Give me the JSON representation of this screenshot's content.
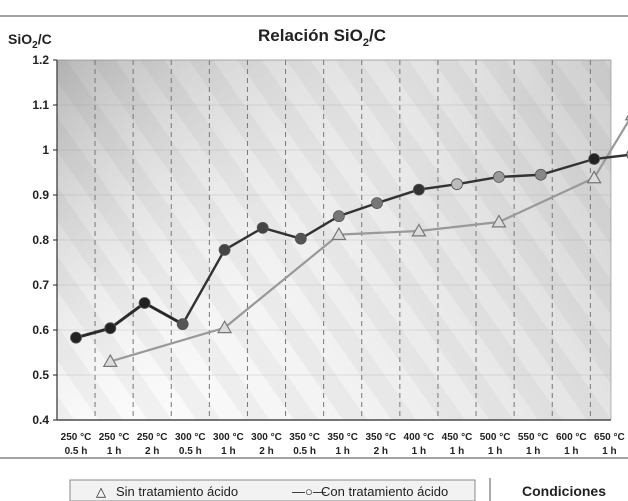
{
  "chart_data": {
    "type": "line",
    "title_main": "Relación SiO",
    "title_sub": "2",
    "title_tail": "/C",
    "ylabel_main": "SiO",
    "ylabel_sub": "2",
    "ylabel_tail": "/C",
    "xlabel": "Condiciones",
    "ylim": [
      0.4,
      1.2
    ],
    "yticks": [
      "0.4",
      "0.5",
      "0.6",
      "0.7",
      "0.8",
      "0.9",
      "1",
      "1.1",
      "1.2"
    ],
    "categories": [
      {
        "temp": "250 °C",
        "time": "0.5 h"
      },
      {
        "temp": "250 °C",
        "time": "1 h"
      },
      {
        "temp": "250 °C",
        "time": "2 h"
      },
      {
        "temp": "300 °C",
        "time": "0.5 h"
      },
      {
        "temp": "300 °C",
        "time": "1 h"
      },
      {
        "temp": "300 °C",
        "time": "2 h"
      },
      {
        "temp": "350 °C",
        "time": "0.5 h"
      },
      {
        "temp": "350 °C",
        "time": "1 h"
      },
      {
        "temp": "350 °C",
        "time": "2 h"
      },
      {
        "temp": "400 °C",
        "time": "1 h"
      },
      {
        "temp": "450 °C",
        "time": "1 h"
      },
      {
        "temp": "500 °C",
        "time": "1 h"
      },
      {
        "temp": "550 °C",
        "time": "1 h"
      },
      {
        "temp": "600 °C",
        "time": "1 h"
      },
      {
        "temp": "650 °C",
        "time": "1 h"
      }
    ],
    "series": [
      {
        "name": "Sin tratamiento ácido",
        "marker": "triangle",
        "color": "#999999",
        "points": [
          {
            "x": 0.9,
            "y": 0.53
          },
          {
            "x": 3.9,
            "y": 0.605
          },
          {
            "x": 6.9,
            "y": 0.812
          },
          {
            "x": 9.0,
            "y": 0.82
          },
          {
            "x": 11.1,
            "y": 0.84
          },
          {
            "x": 13.6,
            "y": 0.938
          },
          {
            "x": 14.6,
            "y": 1.078
          }
        ]
      },
      {
        "name": "Con tratamiento ácido",
        "marker": "circle",
        "color": "#444444",
        "points": [
          {
            "x": 0.0,
            "y": 0.583,
            "fill": "#222222"
          },
          {
            "x": 0.9,
            "y": 0.604,
            "fill": "#222222"
          },
          {
            "x": 1.8,
            "y": 0.66,
            "fill": "#222222"
          },
          {
            "x": 2.8,
            "y": 0.613,
            "fill": "#555555"
          },
          {
            "x": 3.9,
            "y": 0.778,
            "fill": "#444444"
          },
          {
            "x": 4.9,
            "y": 0.827,
            "fill": "#444444"
          },
          {
            "x": 5.9,
            "y": 0.803,
            "fill": "#555555"
          },
          {
            "x": 6.9,
            "y": 0.853,
            "fill": "#777777"
          },
          {
            "x": 7.9,
            "y": 0.882,
            "fill": "#777777"
          },
          {
            "x": 9.0,
            "y": 0.912,
            "fill": "#333333"
          },
          {
            "x": 10.0,
            "y": 0.924,
            "fill": "#bbbbbb"
          },
          {
            "x": 11.1,
            "y": 0.94,
            "fill": "#999999"
          },
          {
            "x": 12.2,
            "y": 0.945,
            "fill": "#888888"
          },
          {
            "x": 13.6,
            "y": 0.98,
            "fill": "#222222"
          },
          {
            "x": 14.6,
            "y": 0.99,
            "fill": "#888888"
          }
        ]
      }
    ],
    "legend": [
      {
        "label": "Sin tratamiento ácido",
        "symbol": "△"
      },
      {
        "label": "Con tratamiento ácido",
        "symbol": "—○—"
      }
    ],
    "grid": true,
    "legend_position": "bottom"
  }
}
